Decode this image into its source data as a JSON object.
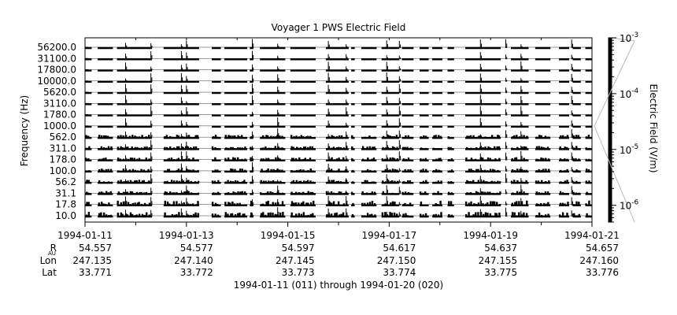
{
  "chart_data": {
    "type": "line",
    "title": "Voyager 1 PWS Electric Field",
    "xlabel": "1994-01-11 (011) through 1994-01-20 (020)",
    "ylabel": "Frequency (Hz)",
    "x_ticks": [
      "1994-01-11",
      "1994-01-13",
      "1994-01-15",
      "1994-01-17",
      "1994-01-19",
      "1994-01-21"
    ],
    "x_range_days": [
      0,
      10
    ],
    "channels": [
      "10.0",
      "17.8",
      "31.1",
      "56.2",
      "100.0",
      "178.0",
      "311.0",
      "562.0",
      "1000.0",
      "1780.0",
      "3110.0",
      "5620.0",
      "10000.0",
      "17800.0",
      "31100.0",
      "56200.0"
    ],
    "colorbar": {
      "label": "Electric Field (V/m)",
      "scale": "log",
      "range": [
        5e-07,
        0.001
      ],
      "ticks": [
        {
          "value": 1e-06,
          "base": "10",
          "exp": "-6"
        },
        {
          "value": 1e-05,
          "base": "10",
          "exp": "-5"
        },
        {
          "value": 0.0001,
          "base": "10",
          "exp": "-4"
        },
        {
          "value": 0.001,
          "base": "10",
          "exp": "-3"
        }
      ]
    },
    "data_intervals_days": [
      [
        0.0,
        0.13
      ],
      [
        0.25,
        0.55
      ],
      [
        0.63,
        1.32
      ],
      [
        1.55,
        2.25
      ],
      [
        2.5,
        2.68
      ],
      [
        2.75,
        3.2
      ],
      [
        3.25,
        3.32
      ],
      [
        3.45,
        3.95
      ],
      [
        4.05,
        4.55
      ],
      [
        4.75,
        5.2
      ],
      [
        5.25,
        5.32
      ],
      [
        5.45,
        5.75
      ],
      [
        5.85,
        6.2
      ],
      [
        6.25,
        6.48
      ],
      [
        6.6,
        6.78
      ],
      [
        6.85,
        7.05
      ],
      [
        7.15,
        7.28
      ],
      [
        7.5,
        8.2
      ],
      [
        8.4,
        8.75
      ],
      [
        8.88,
        9.18
      ],
      [
        9.35,
        9.55
      ],
      [
        9.62,
        9.78
      ],
      [
        9.87,
        10.0
      ]
    ],
    "bursts_days": [
      0.8,
      1.3,
      1.9,
      2.0,
      3.3,
      3.8,
      4.8,
      5.15,
      5.95,
      6.2,
      7.8,
      8.3,
      8.6,
      9.6
    ],
    "ephemeris": {
      "rows": [
        {
          "label": "R",
          "sub": "AU",
          "values": [
            "54.557",
            "54.577",
            "54.597",
            "54.617",
            "54.637",
            "54.657"
          ]
        },
        {
          "label": "Lon",
          "sub": "",
          "values": [
            "247.135",
            "247.140",
            "247.145",
            "247.150",
            "247.155",
            "247.160"
          ]
        },
        {
          "label": "Lat",
          "sub": "",
          "values": [
            "33.771",
            "33.772",
            "33.773",
            "33.774",
            "33.775",
            "33.776"
          ]
        }
      ]
    }
  }
}
